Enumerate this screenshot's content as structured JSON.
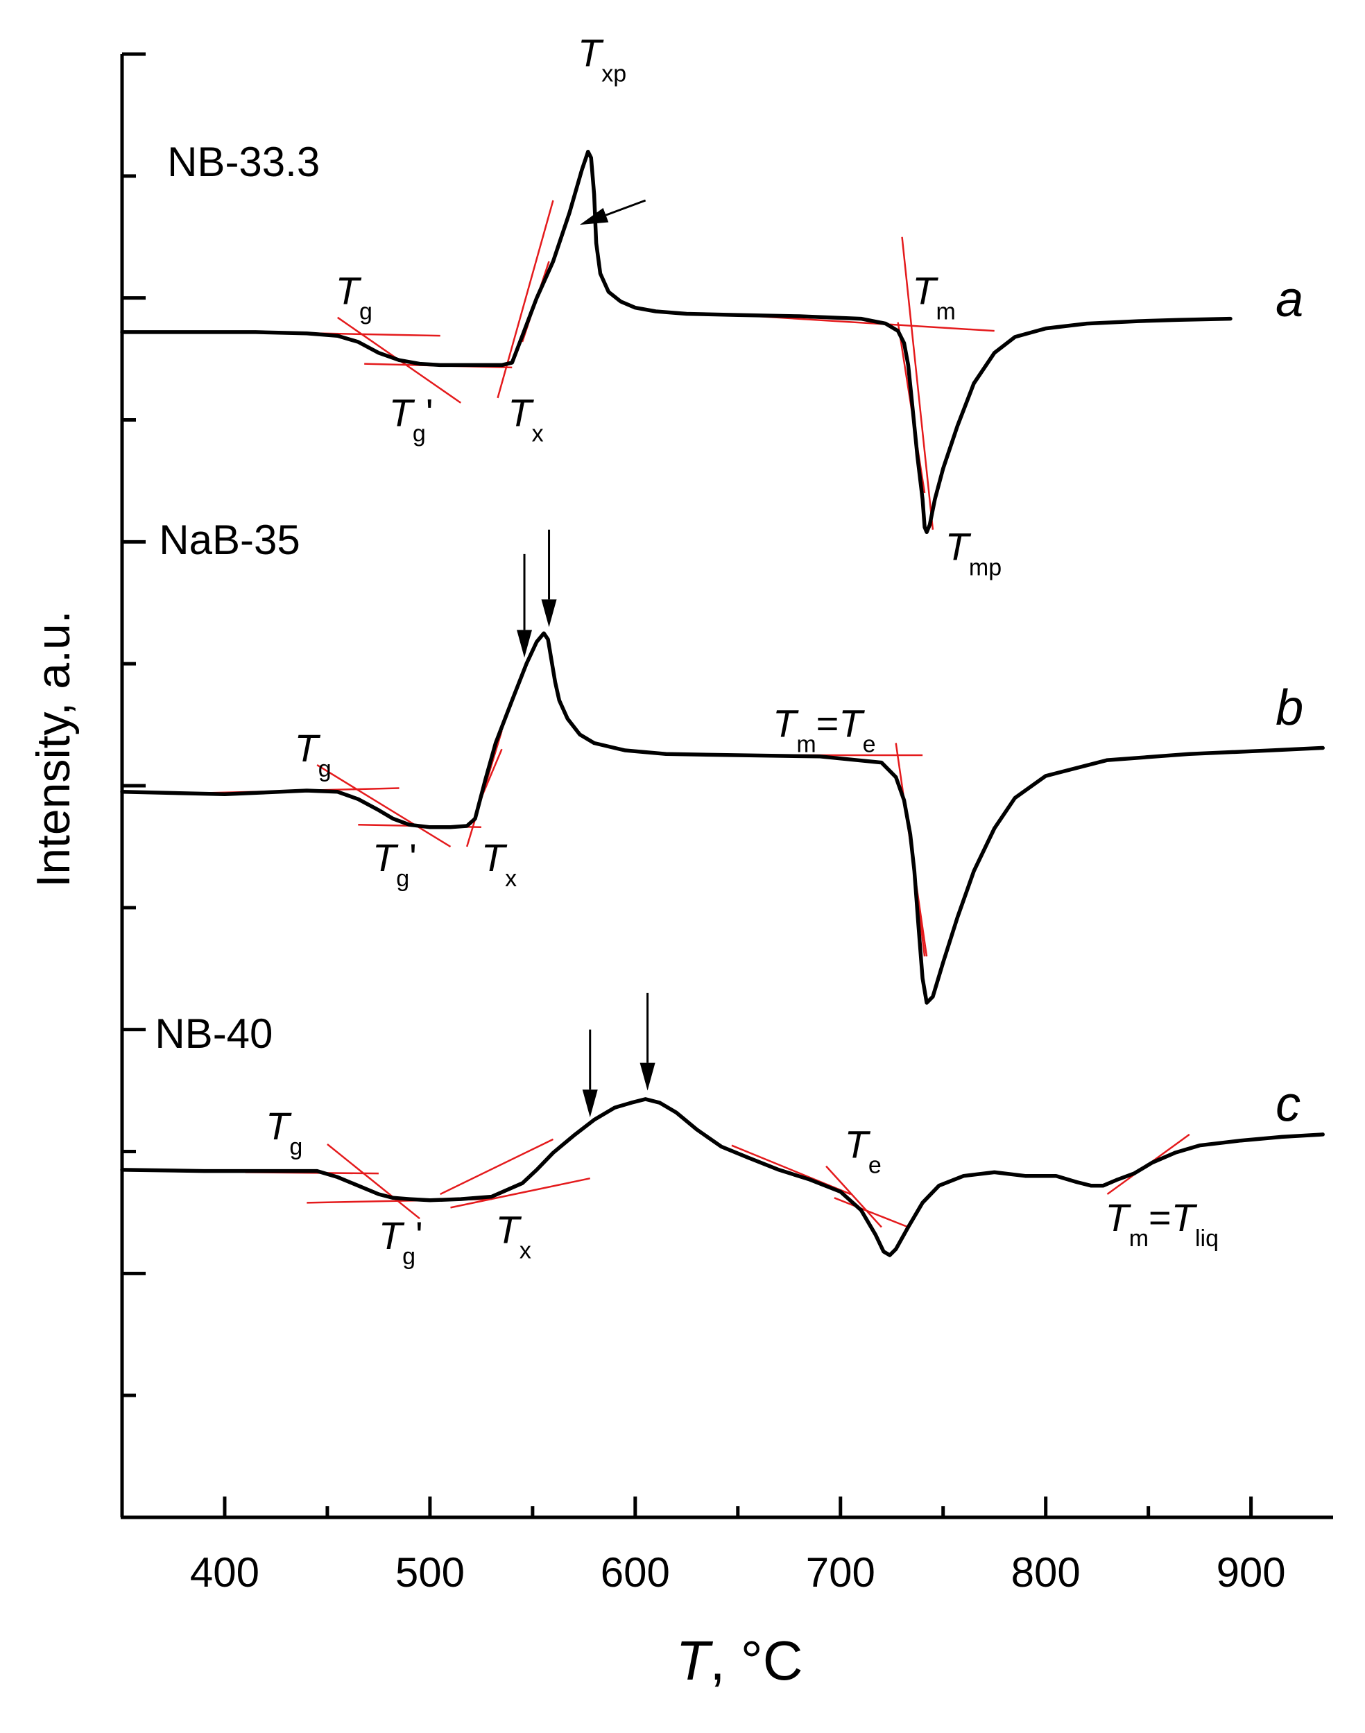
{
  "chart_data": {
    "type": "line",
    "xlabel": {
      "symbol": "T",
      "unit": ", °C"
    },
    "ylabel": "Intensity, a.u.",
    "xlim": [
      350,
      940
    ],
    "xticks": [
      400,
      500,
      600,
      700,
      800,
      900
    ],
    "ylim": [
      0,
      12
    ],
    "y_minor_ticks": 12,
    "colors": {
      "curve": "#000000",
      "tangent": "#e41a1c",
      "axis": "#000000"
    },
    "series": [
      {
        "name": "NB-33.3",
        "curve_letter": "a",
        "x": [
          350,
          380,
          415,
          440,
          455,
          465,
          475,
          485,
          495,
          505,
          515,
          525,
          535,
          540,
          545,
          552,
          560,
          568,
          574,
          577,
          578.5,
          580,
          581,
          583,
          587,
          593,
          600,
          610,
          625,
          650,
          680,
          710,
          722,
          728,
          731,
          733,
          734.5,
          736,
          737.5,
          740,
          741,
          742,
          743.5,
          746,
          750,
          757,
          765,
          775,
          785,
          800,
          820,
          845,
          865,
          890
        ],
        "y": [
          9.72,
          9.72,
          9.72,
          9.71,
          9.69,
          9.64,
          9.55,
          9.49,
          9.46,
          9.45,
          9.45,
          9.45,
          9.45,
          9.47,
          9.69,
          10.0,
          10.3,
          10.7,
          11.05,
          11.2,
          11.15,
          10.85,
          10.45,
          10.2,
          10.05,
          9.97,
          9.92,
          9.89,
          9.87,
          9.86,
          9.85,
          9.83,
          9.79,
          9.73,
          9.63,
          9.45,
          9.2,
          8.95,
          8.7,
          8.35,
          8.12,
          8.08,
          8.14,
          8.35,
          8.6,
          8.95,
          9.3,
          9.55,
          9.68,
          9.75,
          9.79,
          9.81,
          9.82,
          9.83
        ]
      },
      {
        "name": "NaB-35",
        "curve_letter": "b",
        "x": [
          350,
          400,
          440,
          455,
          465,
          475,
          482,
          490,
          500,
          510,
          518,
          522,
          527,
          532,
          540,
          547,
          552,
          555.5,
          557.5,
          559,
          561,
          563,
          567,
          573,
          580,
          595,
          615,
          650,
          690,
          720,
          727,
          731,
          734,
          736,
          738,
          740,
          742,
          745,
          750,
          757,
          765,
          775,
          785,
          800,
          830,
          870,
          910,
          935
        ],
        "y": [
          5.95,
          5.93,
          5.96,
          5.95,
          5.89,
          5.8,
          5.73,
          5.68,
          5.66,
          5.66,
          5.67,
          5.73,
          6.05,
          6.35,
          6.7,
          7.0,
          7.18,
          7.25,
          7.2,
          7.05,
          6.85,
          6.7,
          6.55,
          6.42,
          6.35,
          6.29,
          6.26,
          6.25,
          6.24,
          6.19,
          6.07,
          5.88,
          5.6,
          5.3,
          4.85,
          4.42,
          4.22,
          4.27,
          4.55,
          4.92,
          5.3,
          5.65,
          5.9,
          6.08,
          6.21,
          6.26,
          6.29,
          6.31
        ]
      },
      {
        "name": "NB-40",
        "curve_letter": "c",
        "x": [
          350,
          390,
          420,
          445,
          455,
          465,
          475,
          482,
          490,
          500,
          515,
          530,
          545,
          552,
          560,
          570,
          580,
          590,
          598,
          605,
          612,
          620,
          630,
          642,
          655,
          670,
          685,
          700,
          710,
          717,
          721,
          724,
          727,
          733,
          740,
          748,
          760,
          775,
          790,
          805,
          815,
          822,
          828,
          835,
          843,
          852,
          863,
          875,
          895,
          915,
          935
        ],
        "y": [
          2.85,
          2.84,
          2.84,
          2.84,
          2.79,
          2.72,
          2.65,
          2.62,
          2.61,
          2.6,
          2.61,
          2.63,
          2.74,
          2.85,
          2.99,
          3.13,
          3.26,
          3.36,
          3.4,
          3.43,
          3.4,
          3.32,
          3.18,
          3.04,
          2.95,
          2.85,
          2.77,
          2.67,
          2.52,
          2.32,
          2.18,
          2.15,
          2.2,
          2.38,
          2.58,
          2.72,
          2.8,
          2.83,
          2.8,
          2.8,
          2.75,
          2.72,
          2.72,
          2.77,
          2.82,
          2.91,
          2.99,
          3.05,
          3.09,
          3.12,
          3.14
        ]
      }
    ],
    "tangent_lines": [
      {
        "series": "NB-33.3",
        "x": [
          415,
          505
        ],
        "y": [
          9.72,
          9.69
        ]
      },
      {
        "series": "NB-33.3",
        "x": [
          455,
          515
        ],
        "y": [
          9.84,
          9.14
        ]
      },
      {
        "series": "NB-33.3",
        "x": [
          468,
          540
        ],
        "y": [
          9.46,
          9.43
        ]
      },
      {
        "series": "NB-33.3",
        "x": [
          533,
          560
        ],
        "y": [
          9.18,
          10.8
        ]
      },
      {
        "series": "NB-33.3",
        "x": [
          640,
          775
        ],
        "y": [
          9.87,
          9.73
        ]
      },
      {
        "series": "NB-33.3",
        "x": [
          730,
          745
        ],
        "y": [
          10.5,
          8.1
        ]
      },
      {
        "series": "NB-33.3",
        "x": [
          728,
          741
        ],
        "y": [
          9.8,
          8.4
        ]
      },
      {
        "series": "NB-33.3",
        "x": [
          545,
          558
        ],
        "y": [
          9.64,
          10.3
        ]
      },
      {
        "series": "NaB-35",
        "x": [
          390,
          485
        ],
        "y": [
          5.94,
          5.98
        ]
      },
      {
        "series": "NaB-35",
        "x": [
          445,
          510
        ],
        "y": [
          6.17,
          5.5
        ]
      },
      {
        "series": "NaB-35",
        "x": [
          465,
          525
        ],
        "y": [
          5.68,
          5.66
        ]
      },
      {
        "series": "NaB-35",
        "x": [
          518,
          535
        ],
        "y": [
          5.5,
          6.45
        ]
      },
      {
        "series": "NaB-35",
        "x": [
          640,
          740
        ],
        "y": [
          6.25,
          6.25
        ]
      },
      {
        "series": "NaB-35",
        "x": [
          727,
          742
        ],
        "y": [
          6.35,
          4.6
        ]
      },
      {
        "series": "NaB-35",
        "x": [
          733,
          741
        ],
        "y": [
          5.7,
          4.6
        ]
      },
      {
        "series": "NaB-35",
        "x": [
          525,
          535
        ],
        "y": [
          5.9,
          6.3
        ]
      },
      {
        "series": "NB-40",
        "x": [
          410,
          475
        ],
        "y": [
          2.83,
          2.82
        ]
      },
      {
        "series": "NB-40",
        "x": [
          450,
          495
        ],
        "y": [
          3.06,
          2.45
        ]
      },
      {
        "series": "NB-40",
        "x": [
          440,
          530
        ],
        "y": [
          2.58,
          2.61
        ]
      },
      {
        "series": "NB-40",
        "x": [
          510,
          578
        ],
        "y": [
          2.54,
          2.78
        ]
      },
      {
        "series": "NB-40",
        "x": [
          505,
          560
        ],
        "y": [
          2.65,
          3.1
        ]
      },
      {
        "series": "NB-40",
        "x": [
          647,
          705
        ],
        "y": [
          3.05,
          2.65
        ]
      },
      {
        "series": "NB-40",
        "x": [
          693,
          720
        ],
        "y": [
          2.88,
          2.38
        ]
      },
      {
        "series": "NB-40",
        "x": [
          697,
          733
        ],
        "y": [
          2.62,
          2.38
        ]
      },
      {
        "series": "NB-40",
        "x": [
          830,
          870
        ],
        "y": [
          2.65,
          3.14
        ]
      }
    ],
    "arrows": [
      {
        "series": "NB-33.3",
        "from": [
          605,
          10.8
        ],
        "to": [
          573,
          10.6
        ]
      },
      {
        "series": "NaB-35",
        "from": [
          546,
          7.9
        ],
        "to": [
          546,
          7.05
        ]
      },
      {
        "series": "NaB-35",
        "from": [
          558,
          8.1
        ],
        "to": [
          558,
          7.3
        ]
      },
      {
        "series": "NB-40",
        "from": [
          578,
          4.0
        ],
        "to": [
          578,
          3.28
        ]
      },
      {
        "series": "NB-40",
        "from": [
          606,
          4.3
        ],
        "to": [
          606,
          3.5
        ]
      }
    ],
    "annotations": [
      {
        "series": "NB-33.3",
        "x": 572,
        "y": 11.9,
        "symbol": "T",
        "sub": "xp"
      },
      {
        "series": "NB-33.3",
        "x": 454,
        "y": 9.95,
        "symbol": "T",
        "sub": "g"
      },
      {
        "series": "NB-33.3",
        "x": 480,
        "y": 8.95,
        "symbol": "T",
        "sub": "g",
        "suffix": "'"
      },
      {
        "series": "NB-33.3",
        "x": 538,
        "y": 8.95,
        "symbol": "T",
        "sub": "x"
      },
      {
        "series": "NB-33.3",
        "x": 735,
        "y": 9.95,
        "symbol": "T",
        "sub": "m"
      },
      {
        "series": "NB-33.3",
        "x": 751,
        "y": 7.85,
        "symbol": "T",
        "sub": "mp"
      },
      {
        "series": "NaB-35",
        "x": 434,
        "y": 6.2,
        "symbol": "T",
        "sub": "g"
      },
      {
        "series": "NaB-35",
        "x": 472,
        "y": 5.3,
        "symbol": "T",
        "sub": "g",
        "suffix": "'"
      },
      {
        "series": "NaB-35",
        "x": 525,
        "y": 5.3,
        "symbol": "T",
        "sub": "x"
      },
      {
        "series": "NaB-35",
        "x": 667,
        "y": 6.4,
        "symbol": "T",
        "sub": "m",
        "suffix": "=",
        "symbol2": "T",
        "sub2": "e"
      },
      {
        "series": "NB-40",
        "x": 420,
        "y": 3.1,
        "symbol": "T",
        "sub": "g"
      },
      {
        "series": "NB-40",
        "x": 475,
        "y": 2.2,
        "symbol": "T",
        "sub": "g",
        "suffix": "'"
      },
      {
        "series": "NB-40",
        "x": 532,
        "y": 2.25,
        "symbol": "T",
        "sub": "x"
      },
      {
        "series": "NB-40",
        "x": 702,
        "y": 2.95,
        "symbol": "T",
        "sub": "e"
      },
      {
        "series": "NB-40",
        "x": 829,
        "y": 2.35,
        "symbol": "T",
        "sub": "m",
        "suffix": "=",
        "symbol2": "T",
        "sub2": "liq"
      }
    ],
    "sample_labels": [
      {
        "text": "NB-33.3",
        "x": 372,
        "y": 11.0
      },
      {
        "text": "NaB-35",
        "x": 368,
        "y": 7.9
      },
      {
        "text": "NB-40",
        "x": 366,
        "y": 3.85
      }
    ],
    "curve_letters": [
      {
        "text": "a",
        "x": 912,
        "y": 9.85
      },
      {
        "text": "b",
        "x": 912,
        "y": 6.5
      },
      {
        "text": "c",
        "x": 912,
        "y": 3.25
      }
    ]
  }
}
